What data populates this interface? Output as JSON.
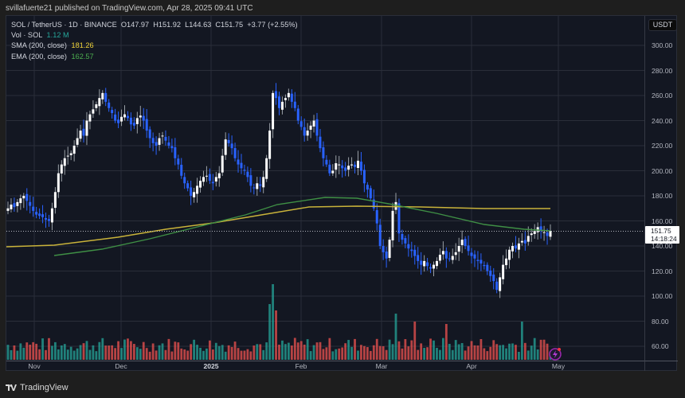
{
  "header": {
    "publish_line": "svillafuerte21 published on TradingView.com, Apr 28, 2025 09:41 UTC"
  },
  "legend": {
    "symbol_line": "SOL / TetherUS · 1D · BINANCE",
    "open": "O147.97",
    "high": "H151.92",
    "low": "L144.63",
    "close": "C151.75",
    "change": "+3.77 (+2.55%)",
    "vol_label": "Vol · SOL",
    "vol_value": "1.12 M",
    "sma_label": "SMA (200, close)",
    "sma_value": "181.26",
    "ema_label": "EMA (200, close)",
    "ema_value": "162.57"
  },
  "price_axis": {
    "currency": "USDT",
    "ticks": [
      "300.00",
      "280.00",
      "260.00",
      "240.00",
      "220.00",
      "200.00",
      "180.00",
      "160.00",
      "140.00",
      "120.00",
      "100.00",
      "80.00",
      "60.00"
    ],
    "last_price": "151.75",
    "countdown": "14:18:24"
  },
  "time_axis": {
    "labels": [
      "Nov",
      "Dec",
      "2025",
      "Feb",
      "Mar",
      "Apr",
      "May"
    ]
  },
  "footer": {
    "brand": "TradingView"
  },
  "colors": {
    "background": "#131722",
    "up_candle": "#ffffff",
    "down_candle": "#2962ff",
    "volume_up": "#26a69a",
    "volume_down": "#ef5350",
    "sma": "#c9b33a",
    "ema": "#3f8f45",
    "vol_value": "#26a69a",
    "sma_value": "#f0d43a",
    "ema_value": "#4caf50"
  },
  "chart_data": {
    "type": "candlestick",
    "title": "SOL / TetherUS · 1D · BINANCE",
    "xlabel": "",
    "ylabel": "USDT",
    "ylim": [
      50,
      310
    ],
    "x_ticks": [
      "Nov",
      "Dec",
      "2025",
      "Feb",
      "Mar",
      "Apr",
      "May"
    ],
    "y_ticks": [
      60,
      80,
      100,
      120,
      140,
      160,
      180,
      200,
      220,
      240,
      260,
      280,
      300
    ],
    "grid": true,
    "last": {
      "open": 147.97,
      "high": 151.92,
      "low": 144.63,
      "close": 151.75,
      "change": 3.77,
      "change_pct": 2.55,
      "volume": "1.12M"
    },
    "indicators": [
      {
        "name": "SMA (200, close)",
        "value": 181.26,
        "color": "#c9b33a"
      },
      {
        "name": "EMA (200, close)",
        "value": 162.57,
        "color": "#3f8f45"
      }
    ],
    "closes_approx": [
      170,
      173,
      171,
      175,
      178,
      180,
      176,
      172,
      168,
      165,
      164,
      163,
      161,
      160,
      170,
      183,
      198,
      205,
      210,
      212,
      214,
      220,
      226,
      232,
      228,
      240,
      245,
      249,
      253,
      258,
      262,
      255,
      250,
      246,
      240,
      238,
      243,
      245,
      242,
      237,
      236,
      242,
      244,
      240,
      232,
      226,
      222,
      220,
      226,
      228,
      224,
      220,
      218,
      210,
      205,
      196,
      190,
      186,
      180,
      183,
      188,
      192,
      195,
      196,
      192,
      190,
      195,
      198,
      212,
      225,
      222,
      218,
      210,
      205,
      202,
      200,
      195,
      188,
      186,
      190,
      188,
      195,
      210,
      232,
      262,
      258,
      250,
      255,
      258,
      262,
      255,
      250,
      240,
      235,
      228,
      232,
      236,
      240,
      228,
      218,
      210,
      205,
      198,
      200,
      206,
      205,
      202,
      200,
      204,
      205,
      203,
      208,
      200,
      190,
      185,
      178,
      170,
      158,
      140,
      135,
      130,
      145,
      168,
      175,
      150,
      145,
      142,
      138,
      136,
      132,
      128,
      125,
      128,
      124,
      122,
      125,
      128,
      133,
      136,
      130,
      130,
      132,
      135,
      140,
      145,
      140,
      136,
      132,
      130,
      128,
      126,
      124,
      120,
      116,
      112,
      105,
      115,
      125,
      130,
      137,
      140,
      138,
      142,
      144,
      142,
      148,
      150,
      152,
      155,
      152,
      151,
      148,
      152
    ]
  }
}
